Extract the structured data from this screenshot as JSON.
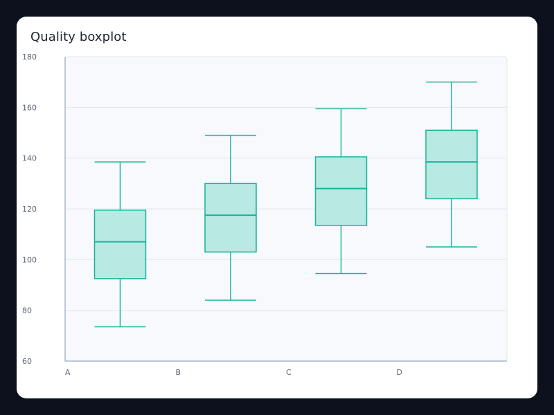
{
  "colors": {
    "page_background": "#0c111d",
    "card_background": "#ffffff",
    "plot_background": "#f8f9fd",
    "gridline": "#e3e6ee",
    "axis": "#a9b6d4",
    "box_stroke": "#19b39b",
    "box_fill": "#b8e9e2",
    "tick_text": "#5b6272",
    "title_text": "#1f2430"
  },
  "chart_data": {
    "type": "boxplot",
    "title": "Quality boxplot",
    "xlabel": "",
    "ylabel": "",
    "categories": [
      "A",
      "B",
      "C",
      "D"
    ],
    "boxes": [
      {
        "category": "A",
        "min": 73.5,
        "q1": 92.5,
        "median": 107,
        "q3": 119.5,
        "max": 138.5
      },
      {
        "category": "B",
        "min": 84,
        "q1": 103,
        "median": 117.5,
        "q3": 130,
        "max": 149
      },
      {
        "category": "C",
        "min": 94.5,
        "q1": 113.5,
        "median": 128,
        "q3": 140.5,
        "max": 159.5
      },
      {
        "category": "D",
        "min": 105,
        "q1": 124,
        "median": 138.5,
        "q3": 151,
        "max": 170
      }
    ],
    "ylim": [
      60,
      180
    ],
    "yticks": [
      60,
      80,
      100,
      120,
      140,
      160,
      180
    ],
    "grid": true,
    "legend": "none"
  }
}
